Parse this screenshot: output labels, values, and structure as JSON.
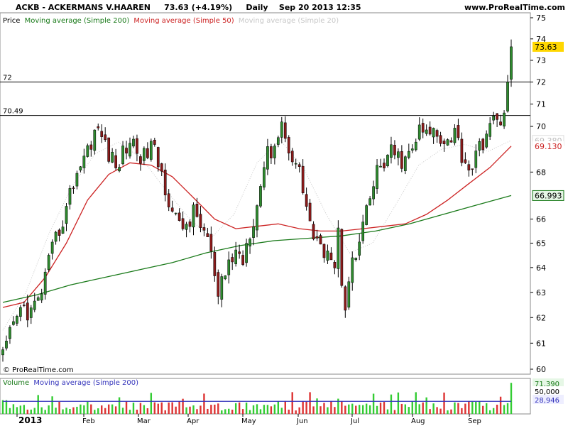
{
  "header": {
    "symbol": "ACKB - ACKERMANS V.HAAREN",
    "price_change": "73.63 (+4.19%)",
    "timeframe": "Daily",
    "datetime": "Sep 20 2013 12:35",
    "site": "www.ProRealTime.com"
  },
  "watermark": "© ProRealTime.com",
  "legend_price": {
    "label": "Price",
    "ma200": "Moving average (Simple 200)",
    "ma50": "Moving average (Simple 50)",
    "ma20": "Moving average (Simple 20)"
  },
  "legend_volume": {
    "label": "Volume",
    "ma200": "Moving average (Simple 200)"
  },
  "colors": {
    "up": "#2e8b2e",
    "down": "#8b1a1a",
    "ma200": "#1a7a1a",
    "ma50": "#cc2222",
    "ma20": "#c8c8c8",
    "vol_up": "#33cc33",
    "vol_down": "#dd3333",
    "vol_ma": "#3333bb",
    "last_price_bg": "#ffd700",
    "ma200_badge_bg": "#e6f7e6",
    "vol_badge_bg": "#e6f7e6"
  },
  "chart_data": {
    "type": "candlestick",
    "y_ticks": [
      "60",
      "61",
      "62",
      "63",
      "64",
      "65",
      "66",
      "68",
      "70",
      "71",
      "72",
      "73",
      "74",
      "75"
    ],
    "x_labels": [
      "2013",
      "Feb",
      "Mar",
      "Apr",
      "May",
      "Jun",
      "Jul",
      "Aug",
      "Sep"
    ],
    "ylim": [
      60,
      75
    ],
    "y_scale": "log",
    "levels": [
      {
        "label": "72",
        "value": 72
      },
      {
        "label": "70.49",
        "value": 70.49
      }
    ],
    "badges": {
      "last_price": "73.63",
      "ma20": "69.380",
      "ma50": "69.130",
      "ma200": "66.993"
    },
    "volume_badges": {
      "max": "71,390",
      "level": "50,000",
      "ma": "28,946"
    },
    "price_path": [
      [
        0,
        60.4
      ],
      [
        2,
        61.2
      ],
      [
        4,
        62.0
      ],
      [
        6,
        62.4
      ],
      [
        8,
        62.2
      ],
      [
        10,
        62.6
      ],
      [
        12,
        63.6
      ],
      [
        14,
        64.6
      ],
      [
        16,
        65.6
      ],
      [
        18,
        66.4
      ],
      [
        20,
        67.6
      ],
      [
        22,
        68.4
      ],
      [
        24,
        69.0
      ],
      [
        26,
        69.8
      ],
      [
        28,
        69.6
      ],
      [
        30,
        68.8
      ],
      [
        32,
        68.2
      ],
      [
        34,
        68.8
      ],
      [
        36,
        69.4
      ],
      [
        38,
        69.0
      ],
      [
        40,
        68.6
      ],
      [
        42,
        69.2
      ],
      [
        44,
        68.4
      ],
      [
        46,
        67.4
      ],
      [
        48,
        66.4
      ],
      [
        50,
        65.6
      ],
      [
        52,
        65.8
      ],
      [
        54,
        66.2
      ],
      [
        56,
        65.8
      ],
      [
        58,
        65.2
      ],
      [
        60,
        63.6
      ],
      [
        61,
        62.6
      ],
      [
        62,
        63.2
      ],
      [
        64,
        64.2
      ],
      [
        66,
        64.6
      ],
      [
        68,
        64.4
      ],
      [
        70,
        65.6
      ],
      [
        72,
        66.6
      ],
      [
        74,
        68.4
      ],
      [
        76,
        69.0
      ],
      [
        78,
        69.6
      ],
      [
        79,
        70.2
      ],
      [
        80,
        69.4
      ],
      [
        82,
        68.8
      ],
      [
        84,
        68.0
      ],
      [
        86,
        66.6
      ],
      [
        88,
        65.2
      ],
      [
        90,
        64.6
      ],
      [
        92,
        65.0
      ],
      [
        94,
        64.0
      ],
      [
        95,
        65.4
      ],
      [
        96,
        63.6
      ],
      [
        97,
        62.6
      ],
      [
        98,
        63.8
      ],
      [
        100,
        64.4
      ],
      [
        102,
        65.6
      ],
      [
        104,
        66.8
      ],
      [
        106,
        68.0
      ],
      [
        108,
        68.4
      ],
      [
        110,
        68.8
      ],
      [
        112,
        68.6
      ],
      [
        114,
        68.4
      ],
      [
        116,
        69.0
      ],
      [
        118,
        69.8
      ],
      [
        120,
        69.6
      ],
      [
        122,
        69.8
      ],
      [
        124,
        69.6
      ],
      [
        126,
        69.4
      ],
      [
        128,
        69.8
      ],
      [
        130,
        68.8
      ],
      [
        132,
        68.2
      ],
      [
        134,
        68.6
      ],
      [
        136,
        69.4
      ],
      [
        138,
        70.0
      ],
      [
        140,
        70.2
      ],
      [
        142,
        70.6
      ],
      [
        143,
        72.0
      ],
      [
        144,
        73.6
      ]
    ],
    "ma200_values": [
      62.6,
      62.9,
      63.3,
      63.6,
      63.9,
      64.2,
      64.6,
      64.9,
      65.1,
      65.2,
      65.3,
      65.5,
      65.8,
      66.2,
      66.6,
      66.993
    ],
    "ma50_values": [
      62.4,
      62.6,
      63.6,
      65.0,
      66.8,
      67.9,
      68.4,
      68.3,
      67.8,
      66.9,
      66.0,
      65.6,
      65.7,
      65.8,
      65.6,
      65.5,
      65.5,
      65.6,
      65.7,
      65.8,
      66.2,
      66.8,
      67.5,
      68.2,
      69.13
    ],
    "ma20_values": [
      61.5,
      63.0,
      65.4,
      67.4,
      68.8,
      69.3,
      68.6,
      67.3,
      66.1,
      65.2,
      66.2,
      68.4,
      69.4,
      68.2,
      66.2,
      64.6,
      65.0,
      66.6,
      68.3,
      69.0,
      69.2,
      68.9,
      69.38
    ]
  }
}
